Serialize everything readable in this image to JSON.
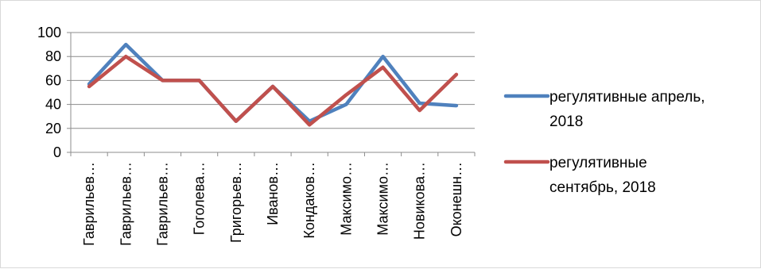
{
  "chart_data": {
    "type": "line",
    "categories": [
      "Гаврильев…",
      "Гаврильев…",
      "Гаврильев…",
      "Гоголева…",
      "Григорьев…",
      "Иванов…",
      "Кондаков…",
      "Максимо…",
      "Максимо…",
      "Новикова…",
      "Оконешн…"
    ],
    "series": [
      {
        "name": "регулятивные апрель, 2018",
        "color": "#4f81bd",
        "values": [
          57,
          90,
          60,
          60,
          26,
          55,
          26,
          40,
          80,
          41,
          39
        ]
      },
      {
        "name": "регулятивные сентябрь, 2018",
        "color": "#c0504d",
        "values": [
          55,
          80,
          60,
          60,
          26,
          55,
          23,
          48,
          71,
          35,
          65
        ]
      }
    ],
    "ylim": [
      0,
      100
    ],
    "yticks": [
      0,
      20,
      40,
      60,
      80,
      100
    ],
    "ytick_labels": [
      "0",
      "20",
      "40",
      "60",
      "80",
      "100"
    ],
    "title": "",
    "xlabel": "",
    "ylabel": "",
    "grid": true,
    "legend_position": "right",
    "legend": [
      {
        "line1": "регулятивные апрель,",
        "line2": "2018"
      },
      {
        "line1": "регулятивные",
        "line2": "сентябрь, 2018"
      }
    ]
  }
}
